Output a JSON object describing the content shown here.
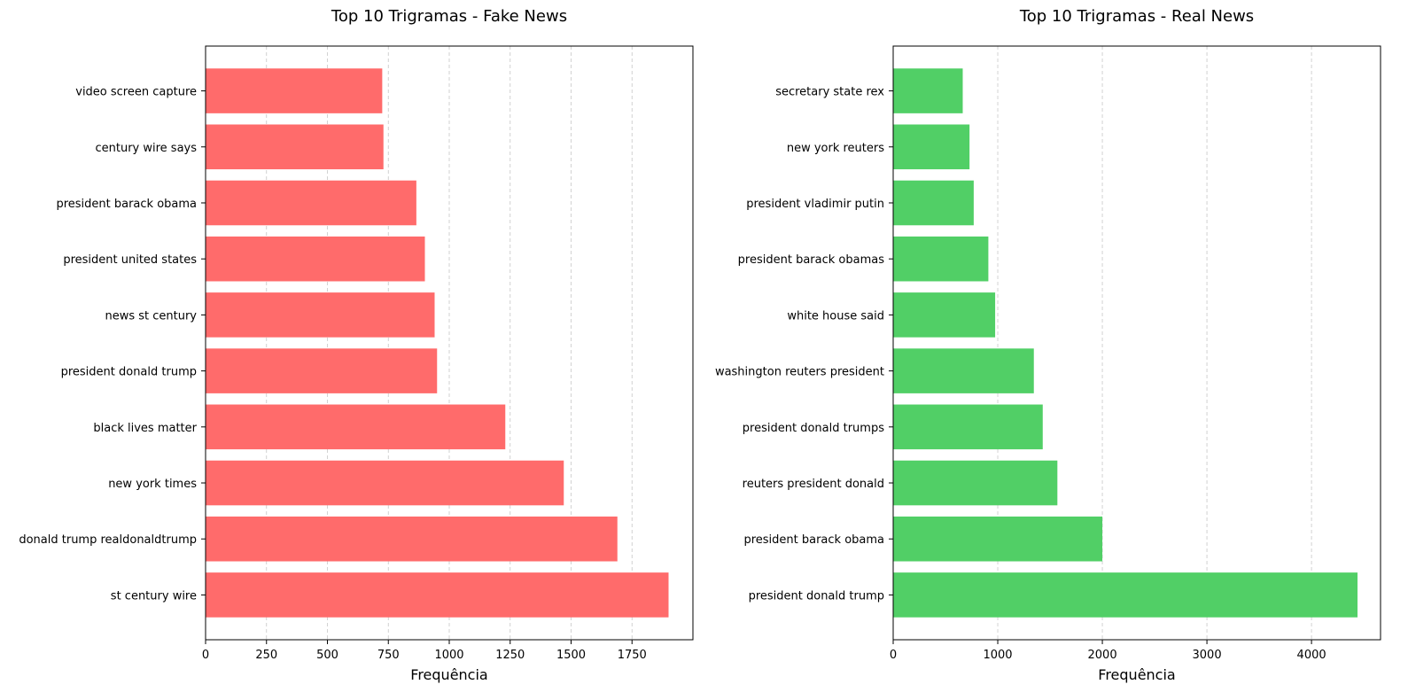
{
  "chart_data": [
    {
      "type": "bar",
      "orientation": "horizontal",
      "title": "Top 10 Trigramas - Fake News",
      "xlabel": "Frequência",
      "ylabel": "",
      "categories": [
        "st century wire",
        "donald trump realdonaldtrump",
        "new york times",
        "black lives matter",
        "president donald trump",
        "news st century",
        "president united states",
        "president barack obama",
        "century wire says",
        "video screen capture"
      ],
      "values": [
        1900,
        1690,
        1470,
        1230,
        950,
        940,
        900,
        865,
        730,
        725
      ],
      "xlim": [
        0,
        2000
      ],
      "xticks": [
        0,
        250,
        500,
        750,
        1000,
        1250,
        1500,
        1750
      ],
      "grid": "x-dashed",
      "color": "#ff6b6b"
    },
    {
      "type": "bar",
      "orientation": "horizontal",
      "title": "Top 10 Trigramas - Real News",
      "xlabel": "Frequência",
      "ylabel": "",
      "categories": [
        "president donald trump",
        "president barack obama",
        "reuters president donald",
        "president donald trumps",
        "washington reuters president",
        "white house said",
        "president barack obamas",
        "president vladimir putin",
        "new york reuters",
        "secretary state rex"
      ],
      "values": [
        4440,
        2000,
        1570,
        1430,
        1345,
        975,
        910,
        770,
        730,
        665
      ],
      "xlim": [
        0,
        4660
      ],
      "xticks": [
        0,
        1000,
        2000,
        3000,
        4000
      ],
      "grid": "x-dashed",
      "color": "#51cf66"
    }
  ]
}
